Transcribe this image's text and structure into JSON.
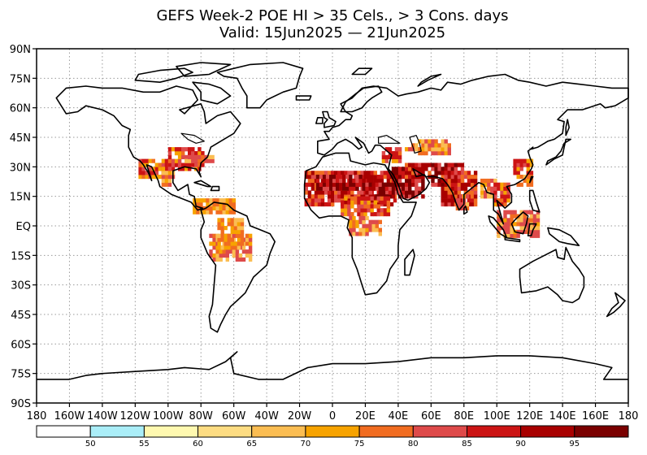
{
  "title": {
    "line1": "GEFS Week-2 POE HI > 35 Cels., > 3 Cons. days",
    "line2": "Valid: 15Jun2025 — 21Jun2025"
  },
  "map": {
    "projection": "equirectangular",
    "lon_range": [
      -180,
      180
    ],
    "lat_range": [
      -90,
      90
    ],
    "grid": "dotted",
    "lat_ticks": [
      "90N",
      "75N",
      "60N",
      "45N",
      "30N",
      "15N",
      "EQ",
      "15S",
      "30S",
      "45S",
      "60S",
      "75S",
      "90S"
    ],
    "lon_ticks": [
      "180",
      "160W",
      "140W",
      "120W",
      "100W",
      "80W",
      "60W",
      "40W",
      "20W",
      "0",
      "20E",
      "40E",
      "60E",
      "80E",
      "100E",
      "120E",
      "140E",
      "160E",
      "180"
    ],
    "land_outline_color": "#000000",
    "ocean_color": "#ffffff"
  },
  "colorbar": {
    "bins": [
      {
        "color": "#ffffff"
      },
      {
        "color": "#aaeef8"
      },
      {
        "color": "#fff9b0"
      },
      {
        "color": "#fddc82"
      },
      {
        "color": "#fbbd52"
      },
      {
        "color": "#f7a300"
      },
      {
        "color": "#f16c20"
      },
      {
        "color": "#de4a4a"
      },
      {
        "color": "#cc1414"
      },
      {
        "color": "#a80000"
      },
      {
        "color": "#7a0000"
      }
    ],
    "labels": [
      "50",
      "55",
      "60",
      "65",
      "70",
      "75",
      "80",
      "85",
      "90",
      "95"
    ]
  }
}
